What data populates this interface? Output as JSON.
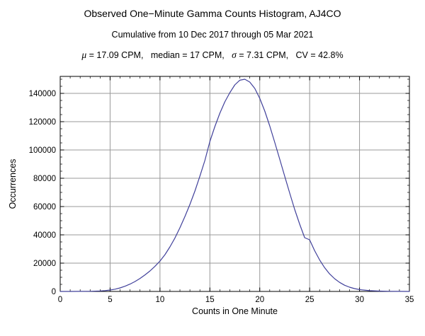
{
  "page": {
    "title": "Observed One−Minute Gamma Counts Histogram, AJ4CO",
    "subtitle": "Cumulative from 10 Dec 2017 through 05 Mar 2021",
    "stats": {
      "mu_symbol": "μ",
      "mu_text": " = 17.09 CPM,   median = 17 CPM,   ",
      "sigma_symbol": "σ",
      "sigma_text": " = 7.31 CPM,   CV = 42.8%"
    }
  },
  "chart_data": {
    "type": "line",
    "title": "Observed One−Minute Gamma Counts Histogram, AJ4CO",
    "subtitle": "Cumulative from 10 Dec 2017 through 05 Mar 2021",
    "xlabel": "Counts in One Minute",
    "ylabel": "Occurrences",
    "xlim": [
      0,
      35
    ],
    "ylim": [
      0,
      152000
    ],
    "x_major_step": 5,
    "x_minor_step": 1,
    "y_major_step": 20000,
    "y_minor_step": 5000,
    "x_gridlines": [
      5,
      10,
      15,
      20,
      25,
      30
    ],
    "y_gridlines": [
      20000,
      40000,
      60000,
      80000,
      100000,
      120000,
      140000
    ],
    "grid": true,
    "legend": "none",
    "stats": {
      "mean_cpm": 17.09,
      "median_cpm": 17,
      "sigma_cpm": 7.31,
      "cv_percent": 42.8
    },
    "x": [
      0,
      1,
      2,
      3,
      4,
      4.5,
      5,
      5.5,
      6,
      6.5,
      7,
      7.5,
      8,
      8.5,
      9,
      9.5,
      10,
      10.5,
      11,
      11.5,
      12,
      12.5,
      13,
      13.5,
      14,
      14.5,
      15,
      15.5,
      16,
      16.5,
      17,
      17.5,
      18,
      18.5,
      19,
      19.5,
      20,
      20.5,
      21,
      21.5,
      22,
      22.5,
      23,
      23.5,
      24,
      24.5,
      25,
      25.5,
      26,
      26.5,
      27,
      27.5,
      28,
      28.5,
      29,
      29.5,
      30,
      31,
      32,
      33,
      34,
      35
    ],
    "y": [
      0,
      0,
      30,
      120,
      350,
      600,
      1000,
      1600,
      2500,
      3700,
      5200,
      7000,
      9200,
      11700,
      14500,
      17800,
      21500,
      26000,
      31500,
      37800,
      45000,
      53000,
      61500,
      71000,
      81500,
      92500,
      106000,
      116500,
      126000,
      134000,
      140500,
      146000,
      149300,
      150000,
      148000,
      143500,
      136500,
      127500,
      117000,
      105500,
      93500,
      81500,
      69500,
      58000,
      47500,
      38000,
      36500,
      28800,
      22300,
      16800,
      12400,
      9000,
      6400,
      4400,
      3000,
      2000,
      1300,
      550,
      230,
      100,
      45,
      20
    ],
    "colors": {
      "curve": "#41419b",
      "grid": "#989898",
      "frame": "#000000",
      "text": "#000000"
    }
  }
}
